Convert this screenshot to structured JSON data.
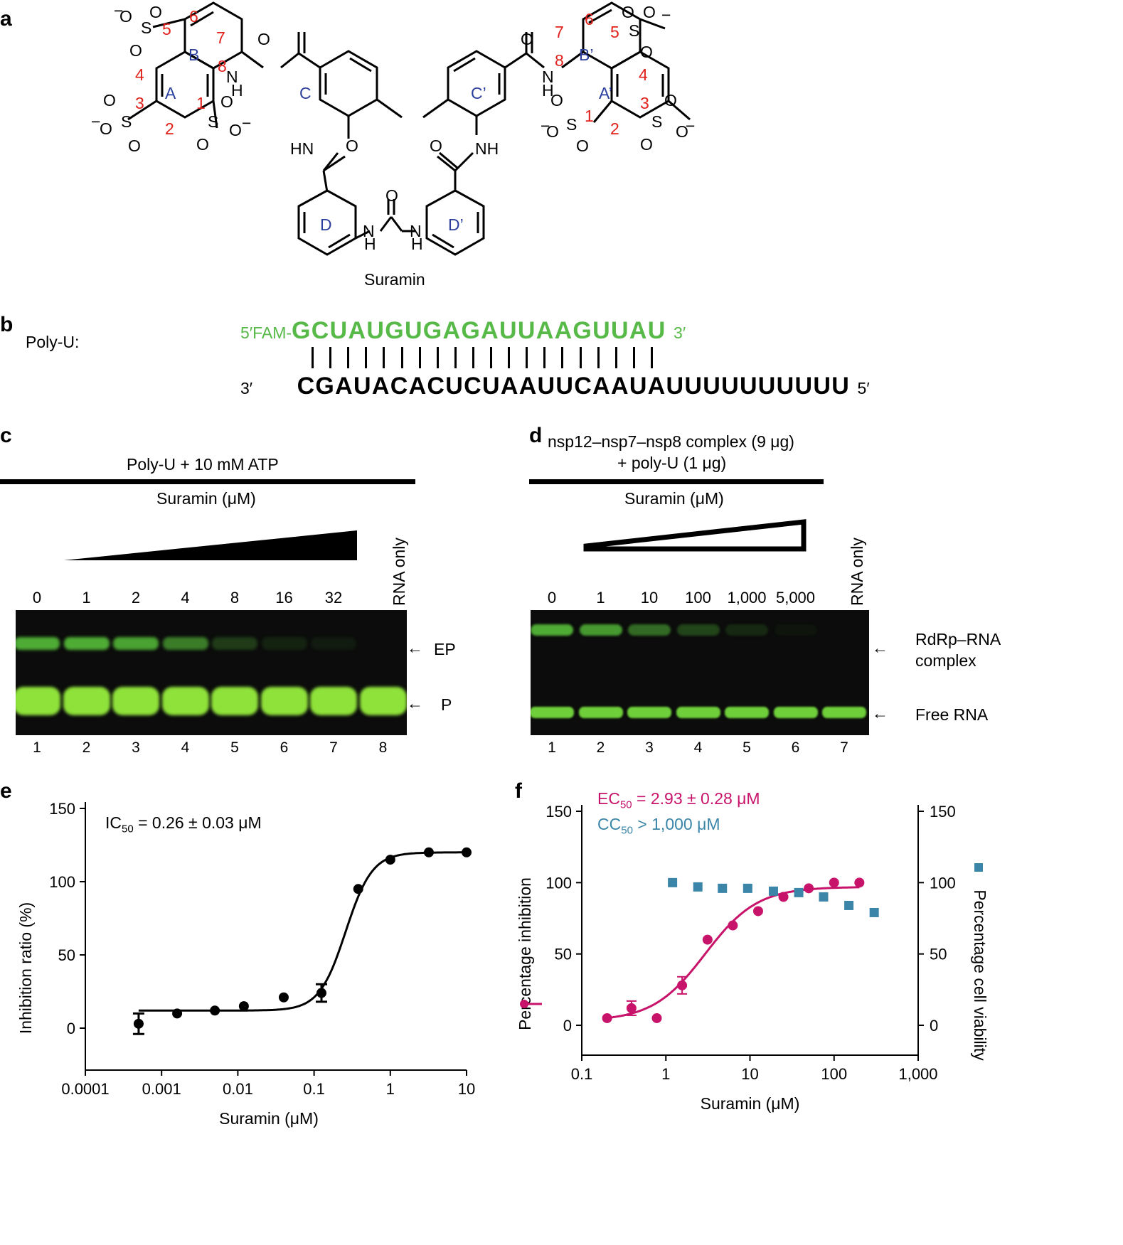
{
  "panel_a": {
    "label": "a",
    "compound_name": "Suramin",
    "ring_labels": [
      "A",
      "B",
      "C",
      "D",
      "A’",
      "B’",
      "C’",
      "D’"
    ],
    "position_numbers": [
      "1",
      "2",
      "3",
      "4",
      "5",
      "6",
      "7",
      "8"
    ],
    "atoms": {
      "O": "O",
      "S": "S",
      "NH": "NH",
      "HN": "HN",
      "N": "N",
      "H": "H",
      "minus": "−"
    }
  },
  "panel_b": {
    "label": "b",
    "name": "Poly-U:",
    "top_prefix": "5′FAM-",
    "top_seq": "GCUAUGUGAGAUUAAGUUAU",
    "top_suffix": "3′",
    "bottom_prefix": "3′",
    "bottom_seq": "CGAUACACUCUAAUUCAAUAUUUUUUUUUU",
    "bottom_suffix": "5′",
    "pair_count": 20
  },
  "panel_c": {
    "label": "c",
    "header": "Poly-U + 10 mM ATP",
    "subheader": "Suramin (μM)",
    "concentrations": [
      "0",
      "1",
      "2",
      "4",
      "8",
      "16",
      "32"
    ],
    "rna_only": "RNA only",
    "lanes": [
      "1",
      "2",
      "3",
      "4",
      "5",
      "6",
      "7",
      "8"
    ],
    "band_labels": [
      "EP",
      "P"
    ],
    "ep_intensity": [
      0.85,
      0.85,
      0.8,
      0.6,
      0.25,
      0.12,
      0.08,
      0.0
    ]
  },
  "panel_d": {
    "label": "d",
    "header_line1": "nsp12–nsp7–nsp8 complex (9 μg)",
    "header_line2": "+ poly-U (1 μg)",
    "subheader": "Suramin (μM)",
    "concentrations": [
      "0",
      "1",
      "10",
      "100",
      "1,000",
      "5,000"
    ],
    "rna_only": "RNA only",
    "lanes": [
      "1",
      "2",
      "3",
      "4",
      "5",
      "6",
      "7"
    ],
    "band_label_complex_1": "RdRp–RNA",
    "band_label_complex_2": "complex",
    "band_label_free": "Free RNA",
    "complex_intensity": [
      0.85,
      0.75,
      0.5,
      0.3,
      0.15,
      0.05,
      0.0
    ]
  },
  "panel_e": {
    "label": "e",
    "annotation_prefix": "IC",
    "annotation_sub": "50",
    "annotation_suffix": " = 0.26 ± 0.03 μM"
  },
  "panel_f": {
    "label": "f",
    "ec_prefix": "EC",
    "ec_sub": "50",
    "ec_suffix": " = 2.93 ± 0.28 μM",
    "cc_prefix": "CC",
    "cc_sub": "50",
    "cc_suffix": " > 1,000 μM"
  },
  "chart_data": [
    {
      "type": "scatter",
      "panel": "e",
      "xlabel": "Suramin (μM)",
      "ylabel": "Inhibition ratio (%)",
      "x_scale": "log",
      "xlim": [
        0.0001,
        10
      ],
      "ylim": [
        0,
        150
      ],
      "x_ticks": [
        "0.0001",
        "0.001",
        "0.01",
        "0.1",
        "1",
        "10"
      ],
      "y_ticks": [
        "0",
        "50",
        "100",
        "150"
      ],
      "series": [
        {
          "color": "#000000",
          "x": [
            0.0005,
            0.0016,
            0.005,
            0.012,
            0.04,
            0.125,
            0.38,
            1.0,
            3.2,
            10.0
          ],
          "y": [
            3,
            10,
            12,
            15,
            21,
            24,
            95,
            115,
            120,
            120
          ],
          "err": [
            7,
            0,
            0,
            0,
            0,
            6,
            0,
            0,
            0,
            0
          ]
        }
      ],
      "fit": {
        "bottom": 12,
        "top": 120,
        "ic50": 0.26,
        "hill": 2.5
      }
    },
    {
      "type": "scatter",
      "panel": "f",
      "xlabel": "Suramin (μM)",
      "ylabel_left": "Percentage inhibition",
      "ylabel_right": "Percentage cell viability",
      "x_scale": "log",
      "xlim": [
        0.1,
        1000
      ],
      "ylim": [
        -20,
        150
      ],
      "x_ticks": [
        "0.1",
        "1",
        "10",
        "100",
        "1,000"
      ],
      "y_ticks": [
        "0",
        "50",
        "100",
        "150"
      ],
      "series": [
        {
          "color": "#c8136b",
          "x": [
            0.2,
            0.39,
            0.78,
            1.56,
            3.13,
            6.25,
            12.5,
            25,
            50,
            100,
            200
          ],
          "y": [
            5,
            12,
            5,
            28,
            60,
            70,
            80,
            90,
            96,
            100,
            100
          ],
          "err": [
            0,
            5,
            0,
            6,
            0,
            0,
            0,
            0,
            0,
            0,
            0
          ]
        },
        {
          "color": "#3b86a8",
          "x": [
            1.2,
            2.4,
            4.7,
            9.4,
            19,
            38,
            75,
            150,
            300
          ],
          "y": [
            100,
            97,
            96,
            96,
            94,
            93,
            90,
            84,
            79
          ]
        }
      ],
      "fit": {
        "bottom": 3,
        "top": 97,
        "ec50": 2.93,
        "hill": 1.4
      }
    }
  ]
}
